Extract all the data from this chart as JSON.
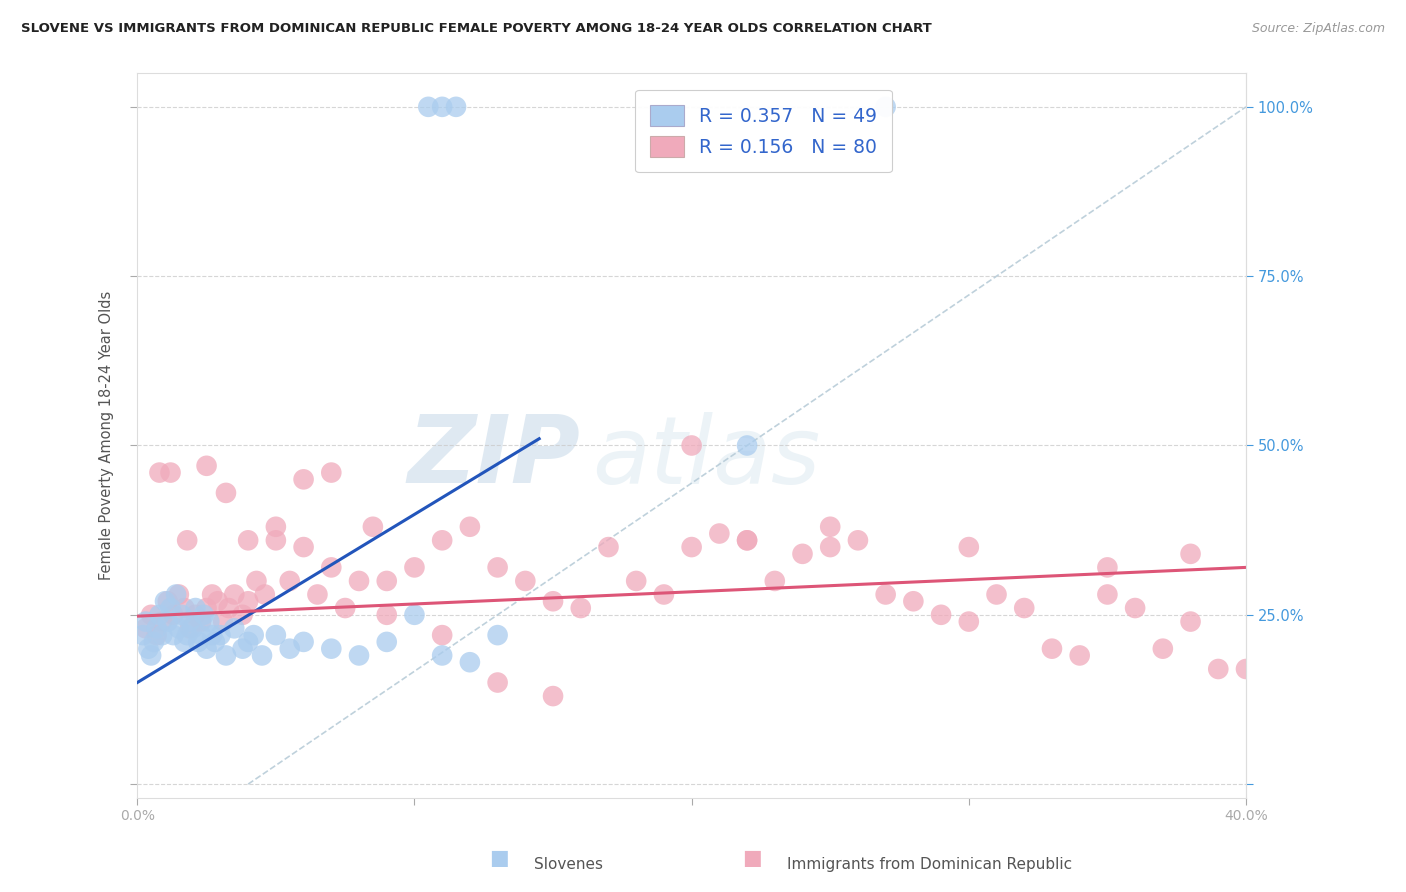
{
  "title": "SLOVENE VS IMMIGRANTS FROM DOMINICAN REPUBLIC FEMALE POVERTY AMONG 18-24 YEAR OLDS CORRELATION CHART",
  "source": "Source: ZipAtlas.com",
  "ylabel": "Female Poverty Among 18-24 Year Olds",
  "xlim": [
    0.0,
    0.4
  ],
  "ylim": [
    -0.02,
    1.05
  ],
  "blue_R": 0.357,
  "blue_N": 49,
  "pink_R": 0.156,
  "pink_N": 80,
  "blue_color": "#aaccee",
  "pink_color": "#f0aabb",
  "blue_line_color": "#2255bb",
  "pink_line_color": "#dd5577",
  "ref_line_color": "#b8ccd8",
  "background_color": "#ffffff",
  "grid_color": "#cccccc",
  "watermark_zip": "ZIP",
  "watermark_atlas": "atlas",
  "legend_label_blue": "Slovenes",
  "legend_label_pink": "Immigrants from Dominican Republic",
  "blue_line_x0": 0.0,
  "blue_line_y0": 0.15,
  "blue_line_x1": 0.145,
  "blue_line_y1": 0.51,
  "pink_line_x0": 0.0,
  "pink_line_y0": 0.248,
  "pink_line_x1": 0.4,
  "pink_line_y1": 0.32,
  "ref_line_x0": 0.04,
  "ref_line_y0": 0.0,
  "ref_line_x1": 0.4,
  "ref_line_y1": 1.0,
  "blue_x": [
    0.002,
    0.003,
    0.004,
    0.005,
    0.006,
    0.007,
    0.008,
    0.009,
    0.01,
    0.011,
    0.012,
    0.013,
    0.014,
    0.015,
    0.016,
    0.017,
    0.018,
    0.019,
    0.02,
    0.021,
    0.022,
    0.023,
    0.024,
    0.025,
    0.026,
    0.027,
    0.028,
    0.03,
    0.032,
    0.035,
    0.038,
    0.04,
    0.042,
    0.045,
    0.05,
    0.055,
    0.06,
    0.07,
    0.08,
    0.09,
    0.1,
    0.11,
    0.12,
    0.13,
    0.105,
    0.11,
    0.115,
    0.27,
    0.22
  ],
  "blue_y": [
    0.22,
    0.24,
    0.2,
    0.19,
    0.21,
    0.23,
    0.25,
    0.22,
    0.27,
    0.24,
    0.26,
    0.22,
    0.28,
    0.23,
    0.25,
    0.21,
    0.22,
    0.24,
    0.23,
    0.26,
    0.21,
    0.22,
    0.25,
    0.2,
    0.24,
    0.22,
    0.21,
    0.22,
    0.19,
    0.23,
    0.2,
    0.21,
    0.22,
    0.19,
    0.22,
    0.2,
    0.21,
    0.2,
    0.19,
    0.21,
    0.25,
    0.19,
    0.18,
    0.22,
    1.0,
    1.0,
    1.0,
    1.0,
    0.5
  ],
  "pink_x": [
    0.003,
    0.005,
    0.007,
    0.009,
    0.011,
    0.013,
    0.015,
    0.017,
    0.019,
    0.021,
    0.023,
    0.025,
    0.027,
    0.029,
    0.031,
    0.033,
    0.035,
    0.038,
    0.04,
    0.043,
    0.046,
    0.05,
    0.055,
    0.06,
    0.065,
    0.07,
    0.075,
    0.08,
    0.085,
    0.09,
    0.1,
    0.11,
    0.12,
    0.13,
    0.14,
    0.15,
    0.16,
    0.17,
    0.18,
    0.19,
    0.2,
    0.21,
    0.22,
    0.23,
    0.24,
    0.25,
    0.26,
    0.27,
    0.28,
    0.29,
    0.3,
    0.31,
    0.32,
    0.33,
    0.34,
    0.35,
    0.36,
    0.37,
    0.38,
    0.39,
    0.008,
    0.012,
    0.018,
    0.025,
    0.032,
    0.04,
    0.05,
    0.06,
    0.07,
    0.09,
    0.11,
    0.13,
    0.15,
    0.2,
    0.22,
    0.25,
    0.3,
    0.35,
    0.38,
    0.4
  ],
  "pink_y": [
    0.23,
    0.25,
    0.22,
    0.24,
    0.27,
    0.25,
    0.28,
    0.26,
    0.23,
    0.25,
    0.24,
    0.26,
    0.28,
    0.27,
    0.24,
    0.26,
    0.28,
    0.25,
    0.27,
    0.3,
    0.28,
    0.36,
    0.3,
    0.35,
    0.28,
    0.32,
    0.26,
    0.3,
    0.38,
    0.25,
    0.32,
    0.36,
    0.38,
    0.32,
    0.3,
    0.27,
    0.26,
    0.35,
    0.3,
    0.28,
    0.35,
    0.37,
    0.36,
    0.3,
    0.34,
    0.38,
    0.36,
    0.28,
    0.27,
    0.25,
    0.35,
    0.28,
    0.26,
    0.2,
    0.19,
    0.28,
    0.26,
    0.2,
    0.34,
    0.17,
    0.46,
    0.46,
    0.36,
    0.47,
    0.43,
    0.36,
    0.38,
    0.45,
    0.46,
    0.3,
    0.22,
    0.15,
    0.13,
    0.5,
    0.36,
    0.35,
    0.24,
    0.32,
    0.24,
    0.17
  ]
}
